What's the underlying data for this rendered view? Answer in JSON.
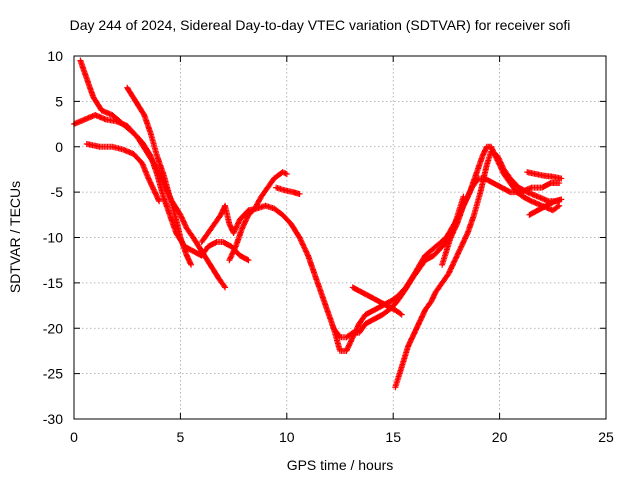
{
  "chart_data": {
    "type": "scatter",
    "title": "Day 244 of 2024, Sidereal Day-to-day VTEC variation (SDTVAR) for receiver sofi",
    "xlabel": "GPS time / hours",
    "ylabel": "SDTVAR / TECUs",
    "xlim": [
      0,
      25
    ],
    "ylim": [
      -30,
      10
    ],
    "x_ticks": [
      "0",
      "5",
      "10",
      "15",
      "20",
      "25"
    ],
    "y_ticks": [
      "10",
      "5",
      "0",
      "-5",
      "-10",
      "-15",
      "-20",
      "-25",
      "-30"
    ],
    "grid": true,
    "legend": "none",
    "marker": "plus",
    "color": "#ff0000",
    "series": [
      {
        "points": [
          [
            0.3,
            9.5
          ],
          [
            0.6,
            7.5
          ],
          [
            0.9,
            5.5
          ],
          [
            1.3,
            4
          ],
          [
            1.8,
            3.5
          ],
          [
            2.3,
            2.5
          ],
          [
            2.8,
            1.5
          ],
          [
            3.2,
            0.5
          ],
          [
            3.6,
            -1
          ],
          [
            3.9,
            -3
          ],
          [
            4.2,
            -5.5
          ],
          [
            4.5,
            -7.5
          ],
          [
            4.8,
            -9.5
          ],
          [
            5.2,
            -11
          ],
          [
            5.6,
            -11.5
          ],
          [
            6,
            -12
          ],
          [
            6.3,
            -11
          ],
          [
            6.7,
            -10.5
          ],
          [
            7,
            -10.5
          ],
          [
            7.4,
            -11
          ],
          [
            7.8,
            -12
          ],
          [
            8.2,
            -12.5
          ]
        ]
      },
      {
        "points": [
          [
            0,
            2.5
          ],
          [
            0.5,
            3
          ],
          [
            1,
            3.5
          ],
          [
            1.5,
            3
          ],
          [
            2,
            2.8
          ],
          [
            2.5,
            2.3
          ],
          [
            3,
            1
          ],
          [
            3.4,
            -0.5
          ],
          [
            3.8,
            -2
          ],
          [
            4.2,
            -4
          ],
          [
            4.6,
            -6
          ],
          [
            5,
            -7.5
          ],
          [
            5.3,
            -9
          ],
          [
            5.6,
            -10
          ],
          [
            6,
            -11.5
          ],
          [
            6.4,
            -13
          ],
          [
            6.8,
            -14.5
          ],
          [
            7.1,
            -15.5
          ]
        ]
      },
      {
        "points": [
          [
            0.6,
            0.3
          ],
          [
            1.2,
            0
          ],
          [
            1.8,
            0
          ],
          [
            2.3,
            -0.3
          ],
          [
            2.8,
            -0.8
          ],
          [
            3.2,
            -1.8
          ],
          [
            3.5,
            -3.5
          ],
          [
            3.8,
            -5
          ],
          [
            4,
            -6
          ]
        ]
      },
      {
        "points": [
          [
            2.5,
            6.5
          ],
          [
            2.9,
            5
          ],
          [
            3.3,
            3.5
          ],
          [
            3.6,
            1.5
          ],
          [
            3.9,
            -1
          ],
          [
            4.2,
            -3
          ],
          [
            4.5,
            -5.5
          ],
          [
            4.8,
            -8
          ],
          [
            5,
            -10
          ],
          [
            5.3,
            -12
          ],
          [
            5.5,
            -13
          ]
        ]
      },
      {
        "points": [
          [
            6,
            -10.5
          ],
          [
            6.3,
            -9.5
          ],
          [
            6.6,
            -8.5
          ],
          [
            6.9,
            -7.5
          ],
          [
            7.1,
            -6.5
          ],
          [
            7.3,
            -8.5
          ],
          [
            7.5,
            -9.5
          ],
          [
            7.8,
            -8
          ],
          [
            8.2,
            -7
          ],
          [
            8.6,
            -6.8
          ],
          [
            9,
            -6.5
          ],
          [
            9.4,
            -6.8
          ],
          [
            9.8,
            -7.5
          ],
          [
            10.2,
            -8.5
          ],
          [
            10.6,
            -10
          ],
          [
            11,
            -12
          ],
          [
            11.3,
            -14
          ],
          [
            11.6,
            -16
          ],
          [
            11.9,
            -18
          ],
          [
            12.2,
            -20
          ],
          [
            12.5,
            -22.5
          ],
          [
            12.8,
            -22.5
          ],
          [
            13.1,
            -21
          ],
          [
            13.4,
            -19.5
          ],
          [
            13.7,
            -18.5
          ],
          [
            14.1,
            -18
          ],
          [
            14.5,
            -17.5
          ],
          [
            14.9,
            -17
          ],
          [
            15.2,
            -16.5
          ],
          [
            15.6,
            -15.5
          ],
          [
            16,
            -14
          ],
          [
            16.5,
            -12
          ],
          [
            17,
            -11
          ],
          [
            17.5,
            -10
          ],
          [
            18,
            -8
          ],
          [
            18.4,
            -6
          ],
          [
            18.7,
            -4.5
          ],
          [
            19,
            -3.5
          ],
          [
            19.3,
            -3.5
          ],
          [
            19.7,
            -4
          ],
          [
            20.1,
            -4.5
          ],
          [
            20.5,
            -5
          ],
          [
            21,
            -5
          ],
          [
            21.5,
            -4.5
          ],
          [
            22,
            -4.5
          ],
          [
            22.4,
            -4
          ],
          [
            22.8,
            -4
          ]
        ]
      },
      {
        "points": [
          [
            7.3,
            -12.5
          ],
          [
            7.6,
            -11
          ],
          [
            7.9,
            -9
          ],
          [
            8.2,
            -7.5
          ],
          [
            8.5,
            -6.8
          ],
          [
            8.8,
            -5.5
          ],
          [
            9.1,
            -4.5
          ],
          [
            9.4,
            -3.5
          ],
          [
            9.8,
            -2.8
          ],
          [
            10,
            -3
          ]
        ]
      },
      {
        "points": [
          [
            9.5,
            -4.5
          ],
          [
            9.9,
            -4.8
          ],
          [
            10.3,
            -5
          ],
          [
            10.6,
            -5.2
          ]
        ]
      },
      {
        "points": [
          [
            12.2,
            -20
          ],
          [
            12.5,
            -21
          ],
          [
            12.8,
            -21
          ],
          [
            13.1,
            -20.5
          ],
          [
            13.4,
            -20.5
          ],
          [
            13.7,
            -19.5
          ],
          [
            14.1,
            -19
          ],
          [
            14.5,
            -18.5
          ],
          [
            14.9,
            -17.8
          ],
          [
            15.2,
            -17
          ],
          [
            15.5,
            -16
          ],
          [
            15.9,
            -14.5
          ],
          [
            16.2,
            -13.5
          ],
          [
            16.5,
            -12.5
          ],
          [
            16.9,
            -12
          ],
          [
            17.3,
            -11
          ],
          [
            17.7,
            -10
          ],
          [
            18,
            -8.5
          ],
          [
            18.3,
            -6.5
          ],
          [
            18.6,
            -5
          ],
          [
            18.9,
            -3
          ],
          [
            19.2,
            -1
          ],
          [
            19.4,
            0
          ],
          [
            19.6,
            0
          ],
          [
            19.9,
            -1.5
          ],
          [
            20.2,
            -3
          ],
          [
            20.5,
            -4
          ],
          [
            20.8,
            -5
          ],
          [
            21.1,
            -5.5
          ],
          [
            21.5,
            -6
          ],
          [
            22,
            -6.5
          ],
          [
            22.5,
            -7
          ],
          [
            22.8,
            -6.5
          ]
        ]
      },
      {
        "points": [
          [
            15.1,
            -26.5
          ],
          [
            15.3,
            -25
          ],
          [
            15.5,
            -23.5
          ],
          [
            15.7,
            -22
          ],
          [
            15.9,
            -21
          ],
          [
            16.1,
            -20
          ],
          [
            16.3,
            -19
          ],
          [
            16.5,
            -18
          ],
          [
            16.8,
            -17
          ],
          [
            17,
            -16
          ],
          [
            17.3,
            -15
          ],
          [
            17.6,
            -14
          ],
          [
            17.9,
            -12.5
          ],
          [
            18.2,
            -11
          ],
          [
            18.5,
            -9.5
          ],
          [
            18.8,
            -7.5
          ],
          [
            19.1,
            -5
          ],
          [
            19.4,
            -2
          ],
          [
            19.6,
            -0.5
          ],
          [
            19.9,
            -1
          ],
          [
            20.2,
            -2.5
          ],
          [
            20.5,
            -3.5
          ],
          [
            20.9,
            -4.5
          ],
          [
            21.3,
            -5
          ],
          [
            21.8,
            -5.5
          ],
          [
            22.3,
            -6
          ],
          [
            22.8,
            -6
          ]
        ]
      },
      {
        "points": [
          [
            13.1,
            -15.5
          ],
          [
            13.5,
            -16
          ],
          [
            13.9,
            -16.5
          ],
          [
            14.3,
            -17
          ],
          [
            14.7,
            -17.5
          ],
          [
            15.1,
            -18
          ],
          [
            15.4,
            -18.5
          ]
        ]
      },
      {
        "points": [
          [
            17.3,
            -13
          ],
          [
            17.5,
            -11.5
          ],
          [
            17.7,
            -10
          ],
          [
            17.9,
            -8.5
          ],
          [
            18.1,
            -7
          ],
          [
            18.3,
            -5.5
          ]
        ]
      },
      {
        "points": [
          [
            21.4,
            -7.5
          ],
          [
            21.8,
            -7
          ],
          [
            22.2,
            -6.5
          ],
          [
            22.6,
            -6
          ],
          [
            22.9,
            -5.8
          ]
        ]
      },
      {
        "points": [
          [
            21.3,
            -2.8
          ],
          [
            21.7,
            -3
          ],
          [
            22.1,
            -3.2
          ],
          [
            22.5,
            -3.3
          ],
          [
            22.9,
            -3.5
          ]
        ]
      }
    ]
  }
}
